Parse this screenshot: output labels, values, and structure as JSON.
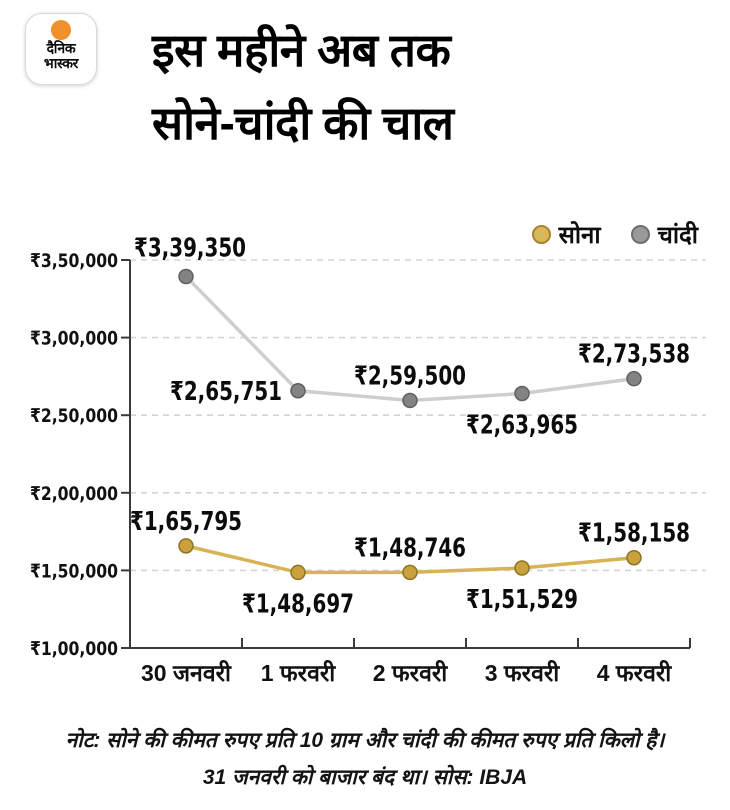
{
  "logo": {
    "line1": "दैनिक",
    "line2": "भास्कर",
    "sun_color": "#f0912d"
  },
  "title": {
    "line1": "इस महीने अब तक",
    "line2": "सोने-चांदी की चाल"
  },
  "legend": [
    {
      "label": "सोना",
      "color": "#d9b85c",
      "stroke": "#a8832c"
    },
    {
      "label": "चांदी",
      "color": "#999999",
      "stroke": "#6e6e6e"
    }
  ],
  "chart_data": {
    "type": "line",
    "categories": [
      "30 जनवरी",
      "1 फरवरी",
      "2 फरवरी",
      "3 फरवरी",
      "4 फरवरी"
    ],
    "series": [
      {
        "name": "सोना",
        "values": [
          165795,
          148697,
          148746,
          151529,
          158158
        ],
        "labels": [
          "₹1,65,795",
          "₹1,48,697",
          "₹1,48,746",
          "₹1,51,529",
          "₹1,58,158"
        ],
        "label_pos": [
          "above",
          "below",
          "above",
          "below",
          "above"
        ],
        "line_color": "#d8b356",
        "dot_color": "#c9a23d",
        "dot_stroke": "#8f7322"
      },
      {
        "name": "चांदी",
        "values": [
          339350,
          265751,
          259500,
          263965,
          273538
        ],
        "labels": [
          "₹3,39,350",
          "₹2,65,751",
          "₹2,59,500",
          "₹2,63,965",
          "₹2,73,538"
        ],
        "label_pos": [
          "above-start",
          "left",
          "above",
          "below",
          "above"
        ],
        "line_color": "#cecece",
        "dot_color": "#838383",
        "dot_stroke": "#5f5f5f"
      }
    ],
    "y_ticks": [
      "₹3,50,000",
      "₹3,00,000",
      "₹2,50,000",
      "₹2,00,000",
      "₹1,50,000",
      "₹1,00,000"
    ],
    "y_tick_values": [
      350000,
      300000,
      250000,
      200000,
      150000,
      100000
    ],
    "ylim": [
      100000,
      350000
    ],
    "grid": "dashed-horizontal",
    "legend_position": "top-right",
    "title": "इस महीने अब तक सोने-चांदी की चाल",
    "xlabel": "",
    "ylabel": ""
  },
  "footer": {
    "note_line1": "नोट: सोने की कीमत रुपए प्रति 10 ग्राम और चांदी की कीमत रुपए प्रति किलो है।",
    "note_line2": "31 जनवरी को बाजार बंद था। सोस: IBJA"
  }
}
